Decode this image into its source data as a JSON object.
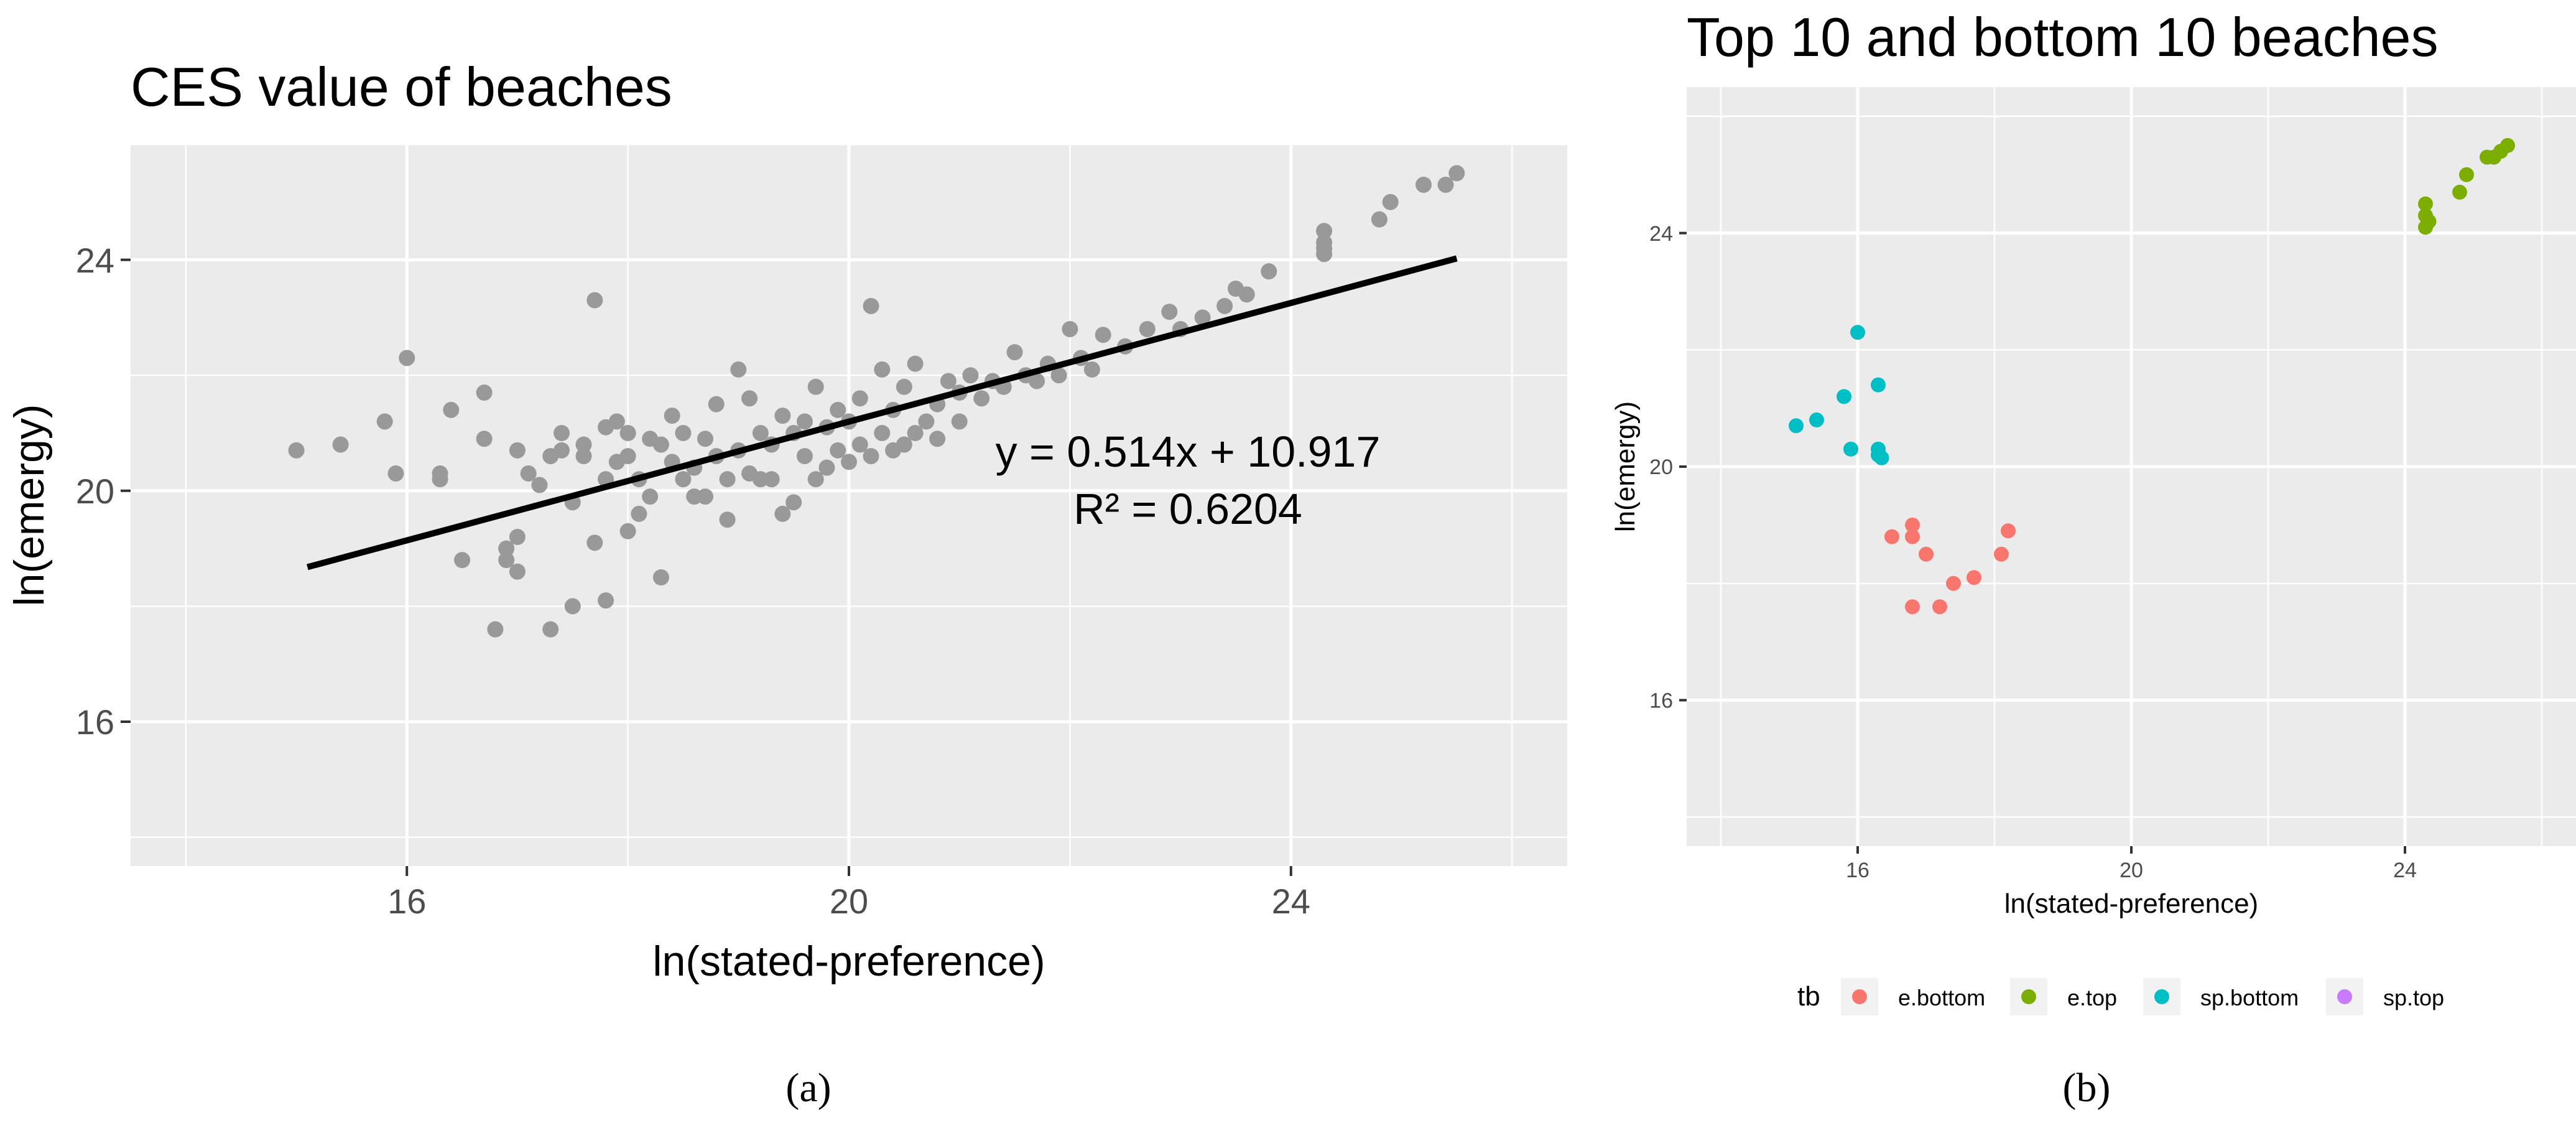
{
  "chart_data": [
    {
      "type": "scatter",
      "title": "CES value of beaches",
      "xlabel": "ln(stated-preference)",
      "ylabel": "ln(emergy)",
      "xlim": [
        13.5,
        26.5
      ],
      "ylim": [
        13.5,
        26.0
      ],
      "x_ticks": [
        "16",
        "20",
        "24"
      ],
      "y_ticks": [
        "16",
        "20",
        "24"
      ],
      "x_tick_values": [
        16,
        20,
        24
      ],
      "y_tick_values": [
        16,
        20,
        24
      ],
      "point_color": "#999999",
      "fit_line": {
        "slope": 0.514,
        "intercept": 10.917,
        "x_range": [
          15.1,
          25.5
        ],
        "color": "#000000"
      },
      "equation_text": "y = 0.514x + 10.917",
      "r2_text": "R² = 0.6204",
      "caption": "(a)",
      "points": [
        [
          15.0,
          20.7
        ],
        [
          15.4,
          20.8
        ],
        [
          15.8,
          21.2
        ],
        [
          15.9,
          20.3
        ],
        [
          16.0,
          22.3
        ],
        [
          16.3,
          20.2
        ],
        [
          16.3,
          20.3
        ],
        [
          16.4,
          21.4
        ],
        [
          16.5,
          18.8
        ],
        [
          16.7,
          21.7
        ],
        [
          16.7,
          20.9
        ],
        [
          16.8,
          17.6
        ],
        [
          16.9,
          19.0
        ],
        [
          16.9,
          18.8
        ],
        [
          17.0,
          19.2
        ],
        [
          17.0,
          20.7
        ],
        [
          17.0,
          18.6
        ],
        [
          17.1,
          20.3
        ],
        [
          17.2,
          20.1
        ],
        [
          17.3,
          17.6
        ],
        [
          17.3,
          20.6
        ],
        [
          17.4,
          21.0
        ],
        [
          17.4,
          20.7
        ],
        [
          17.5,
          19.8
        ],
        [
          17.5,
          18.0
        ],
        [
          17.6,
          20.8
        ],
        [
          17.6,
          20.6
        ],
        [
          17.7,
          23.3
        ],
        [
          17.7,
          19.1
        ],
        [
          17.8,
          21.1
        ],
        [
          17.8,
          20.2
        ],
        [
          17.8,
          18.1
        ],
        [
          17.9,
          21.2
        ],
        [
          17.9,
          20.5
        ],
        [
          18.0,
          19.3
        ],
        [
          18.0,
          20.6
        ],
        [
          18.0,
          21.0
        ],
        [
          18.1,
          20.2
        ],
        [
          18.1,
          19.6
        ],
        [
          18.2,
          20.9
        ],
        [
          18.2,
          19.9
        ],
        [
          18.3,
          20.8
        ],
        [
          18.3,
          18.5
        ],
        [
          18.4,
          20.5
        ],
        [
          18.4,
          21.3
        ],
        [
          18.5,
          20.2
        ],
        [
          18.5,
          21.0
        ],
        [
          18.6,
          19.9
        ],
        [
          18.6,
          20.4
        ],
        [
          18.7,
          20.9
        ],
        [
          18.7,
          19.9
        ],
        [
          18.8,
          21.5
        ],
        [
          18.8,
          20.6
        ],
        [
          18.9,
          19.5
        ],
        [
          18.9,
          20.2
        ],
        [
          19.0,
          22.1
        ],
        [
          19.0,
          20.7
        ],
        [
          19.1,
          21.6
        ],
        [
          19.1,
          20.3
        ],
        [
          19.2,
          20.2
        ],
        [
          19.2,
          21.0
        ],
        [
          19.3,
          20.8
        ],
        [
          19.3,
          20.2
        ],
        [
          19.4,
          19.6
        ],
        [
          19.4,
          21.3
        ],
        [
          19.5,
          21.0
        ],
        [
          19.5,
          19.8
        ],
        [
          19.6,
          20.6
        ],
        [
          19.6,
          21.2
        ],
        [
          19.7,
          20.2
        ],
        [
          19.7,
          21.8
        ],
        [
          19.8,
          20.4
        ],
        [
          19.8,
          21.1
        ],
        [
          19.9,
          20.7
        ],
        [
          19.9,
          21.4
        ],
        [
          20.0,
          20.5
        ],
        [
          20.0,
          21.2
        ],
        [
          20.1,
          20.8
        ],
        [
          20.1,
          21.6
        ],
        [
          20.2,
          20.6
        ],
        [
          20.2,
          23.2
        ],
        [
          20.3,
          21.0
        ],
        [
          20.3,
          22.1
        ],
        [
          20.4,
          20.7
        ],
        [
          20.4,
          21.4
        ],
        [
          20.5,
          20.8
        ],
        [
          20.5,
          21.8
        ],
        [
          20.6,
          21.0
        ],
        [
          20.6,
          22.2
        ],
        [
          20.7,
          21.2
        ],
        [
          20.8,
          21.5
        ],
        [
          20.8,
          20.9
        ],
        [
          20.9,
          21.9
        ],
        [
          21.0,
          21.2
        ],
        [
          21.0,
          21.7
        ],
        [
          21.1,
          22.0
        ],
        [
          21.2,
          21.6
        ],
        [
          21.3,
          21.9
        ],
        [
          21.4,
          21.8
        ],
        [
          21.5,
          22.4
        ],
        [
          21.6,
          22.0
        ],
        [
          21.7,
          21.9
        ],
        [
          21.8,
          22.2
        ],
        [
          21.9,
          22.0
        ],
        [
          22.0,
          22.8
        ],
        [
          22.1,
          22.3
        ],
        [
          22.2,
          22.1
        ],
        [
          22.3,
          22.7
        ],
        [
          22.5,
          22.5
        ],
        [
          22.7,
          22.8
        ],
        [
          22.9,
          23.1
        ],
        [
          23.0,
          22.8
        ],
        [
          23.2,
          23.0
        ],
        [
          23.4,
          23.2
        ],
        [
          23.5,
          23.5
        ],
        [
          23.6,
          23.4
        ],
        [
          23.8,
          23.8
        ],
        [
          24.3,
          24.5
        ],
        [
          24.3,
          24.3
        ],
        [
          24.3,
          24.1
        ],
        [
          24.3,
          24.2
        ],
        [
          24.8,
          24.7
        ],
        [
          24.9,
          25.0
        ],
        [
          25.2,
          25.3
        ],
        [
          25.4,
          25.3
        ],
        [
          25.5,
          25.5
        ]
      ]
    },
    {
      "type": "scatter",
      "title": "Top 10 and bottom 10 beaches",
      "xlabel": "ln(stated-preference)",
      "ylabel": "ln(emergy)",
      "xlim": [
        13.5,
        26.5
      ],
      "ylim": [
        13.5,
        26.5
      ],
      "x_ticks": [
        "16",
        "20",
        "24"
      ],
      "y_ticks": [
        "16",
        "20",
        "24"
      ],
      "x_tick_values": [
        16,
        20,
        24
      ],
      "y_tick_values": [
        16,
        20,
        24
      ],
      "caption": "(b)",
      "legend_title": "tb",
      "series": [
        {
          "name": "e.bottom",
          "color": "#F8766D",
          "points": [
            [
              16.5,
              18.8
            ],
            [
              16.8,
              19.0
            ],
            [
              16.8,
              18.8
            ],
            [
              16.8,
              17.6
            ],
            [
              17.0,
              18.5
            ],
            [
              17.2,
              17.6
            ],
            [
              17.4,
              18.0
            ],
            [
              17.7,
              18.1
            ],
            [
              18.1,
              18.5
            ],
            [
              18.2,
              18.9
            ]
          ]
        },
        {
          "name": "e.top",
          "color": "#7CAE00",
          "points": [
            [
              24.3,
              24.5
            ],
            [
              24.3,
              24.3
            ],
            [
              24.3,
              24.1
            ],
            [
              24.35,
              24.2
            ],
            [
              24.8,
              24.7
            ],
            [
              24.9,
              25.0
            ],
            [
              25.2,
              25.3
            ],
            [
              25.3,
              25.3
            ],
            [
              25.4,
              25.4
            ],
            [
              25.5,
              25.5
            ]
          ]
        },
        {
          "name": "sp.bottom",
          "color": "#00BFC4",
          "points": [
            [
              15.1,
              20.7
            ],
            [
              15.4,
              20.8
            ],
            [
              15.8,
              21.2
            ],
            [
              15.9,
              20.3
            ],
            [
              16.0,
              22.3
            ],
            [
              16.3,
              21.4
            ],
            [
              16.3,
              20.3
            ],
            [
              16.3,
              20.2
            ],
            [
              16.35,
              20.15
            ]
          ]
        },
        {
          "name": "sp.top",
          "color": "#C77CFF",
          "points": []
        }
      ]
    }
  ]
}
